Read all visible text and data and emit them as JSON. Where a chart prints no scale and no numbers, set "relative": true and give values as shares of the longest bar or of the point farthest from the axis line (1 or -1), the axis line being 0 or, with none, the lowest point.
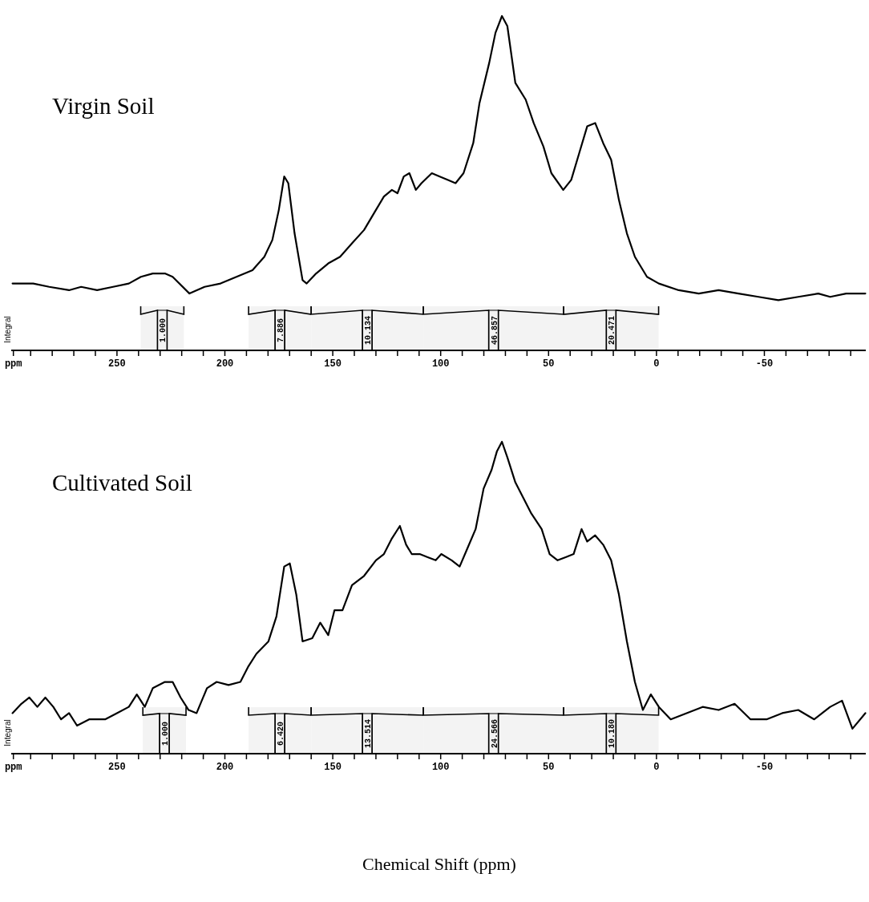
{
  "chart_data": [
    {
      "type": "line",
      "title": "Virgin Soil",
      "relative": true,
      "xlim": [
        299,
        -97
      ],
      "xticks": [
        {
          "value": 298,
          "label": "ppm"
        },
        {
          "value": 290,
          "label": null
        },
        {
          "value": 280,
          "label": null
        },
        {
          "value": 270,
          "label": null
        },
        {
          "value": 260,
          "label": null
        },
        250,
        {
          "value": 240,
          "label": null
        },
        {
          "value": 230,
          "label": null
        },
        {
          "value": 220,
          "label": null
        },
        {
          "value": 210,
          "label": null
        },
        200,
        {
          "value": 190,
          "label": null
        },
        {
          "value": 180,
          "label": null
        },
        {
          "value": 170,
          "label": null
        },
        {
          "value": 160,
          "label": null
        },
        150,
        {
          "value": 140,
          "label": null
        },
        {
          "value": 130,
          "label": null
        },
        {
          "value": 120,
          "label": null
        },
        {
          "value": 110,
          "label": null
        },
        100,
        {
          "value": 90,
          "label": null
        },
        {
          "value": 80,
          "label": null
        },
        {
          "value": 70,
          "label": null
        },
        {
          "value": 60,
          "label": null
        },
        50,
        {
          "value": 40,
          "label": null
        },
        {
          "value": 30,
          "label": null
        },
        {
          "value": 20,
          "label": null
        },
        {
          "value": 10,
          "label": null
        },
        0,
        {
          "value": -10,
          "label": null
        },
        {
          "value": -20,
          "label": null
        },
        {
          "value": -30,
          "label": null
        },
        {
          "value": -40,
          "label": null
        },
        -50,
        {
          "value": -60,
          "label": null
        },
        {
          "value": -70,
          "label": null
        },
        {
          "value": -80,
          "label": null
        },
        {
          "value": -90,
          "label": null
        }
      ],
      "series": [
        {
          "color": "#000000",
          "x": [
            298.4,
            288.8,
            281.4,
            272.2,
            266.6,
            259.2,
            251.8,
            244.5,
            238.9,
            233.4,
            227.8,
            224.2,
            216.4,
            209.4,
            202,
            194.6,
            187.2,
            181.7,
            178,
            175,
            172.5,
            170.6,
            167.7,
            164,
            162.1,
            157.7,
            152.1,
            146.6,
            141.1,
            135.5,
            130,
            126.3,
            122.6,
            120,
            117.1,
            114.5,
            111.5,
            108.9,
            104.1,
            100.4,
            96.8,
            93.1,
            89.4,
            84.9,
            82,
            77.5,
            74.6,
            71.6,
            69.1,
            65.4,
            60.6,
            56.9,
            52.4,
            48.7,
            43.2,
            39.5,
            35.8,
            32.1,
            28.4,
            24.7,
            21,
            17.4,
            13.7,
            10,
            4.4,
            -1.1,
            -10.3,
            -19.6,
            -28.8,
            -38,
            -47.3,
            -56.5,
            -65.7,
            -75,
            -80.5,
            -87.9,
            -96.8
          ],
          "values": [
            0.2,
            0.2,
            0.19,
            0.18,
            0.19,
            0.18,
            0.19,
            0.2,
            0.22,
            0.23,
            0.23,
            0.22,
            0.17,
            0.19,
            0.2,
            0.22,
            0.24,
            0.28,
            0.33,
            0.42,
            0.52,
            0.5,
            0.35,
            0.21,
            0.2,
            0.23,
            0.26,
            0.28,
            0.32,
            0.36,
            0.42,
            0.46,
            0.48,
            0.47,
            0.52,
            0.53,
            0.48,
            0.5,
            0.53,
            0.52,
            0.51,
            0.5,
            0.53,
            0.62,
            0.74,
            0.86,
            0.95,
            1,
            0.97,
            0.8,
            0.75,
            0.68,
            0.61,
            0.53,
            0.48,
            0.51,
            0.59,
            0.67,
            0.68,
            0.62,
            0.57,
            0.45,
            0.35,
            0.28,
            0.22,
            0.2,
            0.18,
            0.17,
            0.18,
            0.17,
            0.16,
            0.15,
            0.16,
            0.17,
            0.16,
            0.17,
            0.17
          ]
        }
      ],
      "bands": [
        {
          "axis": "x",
          "from": 239,
          "to": 219,
          "label": "1.000"
        },
        {
          "axis": "x",
          "from": 189,
          "to": 160,
          "label": "7.886"
        },
        {
          "axis": "x",
          "from": 160,
          "to": 108,
          "label": "10.134"
        },
        {
          "axis": "x",
          "from": 108,
          "to": 43,
          "label": "46.857"
        },
        {
          "axis": "x",
          "from": 43,
          "to": -1,
          "label": "20.471"
        }
      ],
      "annotations": [
        "Integral"
      ]
    },
    {
      "type": "line",
      "title": "Cultivated Soil",
      "xlabel": "Chemical Shift (ppm)",
      "relative": true,
      "xlim": [
        299,
        -97
      ],
      "xticks": [
        {
          "value": 298,
          "label": "ppm"
        },
        {
          "value": 290,
          "label": null
        },
        {
          "value": 280,
          "label": null
        },
        {
          "value": 270,
          "label": null
        },
        {
          "value": 260,
          "label": null
        },
        250,
        {
          "value": 240,
          "label": null
        },
        {
          "value": 230,
          "label": null
        },
        {
          "value": 220,
          "label": null
        },
        {
          "value": 210,
          "label": null
        },
        200,
        {
          "value": 190,
          "label": null
        },
        {
          "value": 180,
          "label": null
        },
        {
          "value": 170,
          "label": null
        },
        {
          "value": 160,
          "label": null
        },
        150,
        {
          "value": 140,
          "label": null
        },
        {
          "value": 130,
          "label": null
        },
        {
          "value": 120,
          "label": null
        },
        {
          "value": 110,
          "label": null
        },
        100,
        {
          "value": 90,
          "label": null
        },
        {
          "value": 80,
          "label": null
        },
        {
          "value": 70,
          "label": null
        },
        {
          "value": 60,
          "label": null
        },
        50,
        {
          "value": 40,
          "label": null
        },
        {
          "value": 30,
          "label": null
        },
        {
          "value": 20,
          "label": null
        },
        {
          "value": 10,
          "label": null
        },
        0,
        {
          "value": -10,
          "label": null
        },
        {
          "value": -20,
          "label": null
        },
        {
          "value": -30,
          "label": null
        },
        {
          "value": -40,
          "label": null
        },
        -50,
        {
          "value": -60,
          "label": null
        },
        {
          "value": -70,
          "label": null
        },
        {
          "value": -80,
          "label": null
        },
        {
          "value": -90,
          "label": null
        }
      ],
      "series": [
        {
          "color": "#000000",
          "x": [
            298.4,
            294.3,
            290.6,
            286.9,
            283.2,
            279.5,
            275.9,
            272.2,
            268.5,
            262.9,
            255.5,
            250,
            244.5,
            240.8,
            237.1,
            233.4,
            227.8,
            224.2,
            220.5,
            216.8,
            213.1,
            208.3,
            203.8,
            198.3,
            192.8,
            189.1,
            185.4,
            179.8,
            176.1,
            172.5,
            169.9,
            166.9,
            164,
            159.5,
            155.8,
            152.1,
            149.2,
            145.5,
            141.1,
            135.5,
            130,
            126.3,
            122.6,
            118.9,
            116,
            113.4,
            109.7,
            106,
            102.3,
            99.7,
            94.9,
            91.2,
            87.5,
            83.8,
            80.1,
            76.4,
            73.9,
            71.6,
            69.1,
            65.4,
            61.7,
            58,
            53.2,
            49.5,
            45.8,
            42.1,
            38.4,
            34.7,
            32.1,
            28.4,
            24.7,
            21,
            17.4,
            13.7,
            10,
            6.3,
            2.6,
            -1.1,
            -6.6,
            -14,
            -21.4,
            -28.8,
            -36.2,
            -43.6,
            -51,
            -58.3,
            -65.7,
            -73.1,
            -80.5,
            -86,
            -90.8,
            -96.8
          ],
          "values": [
            0.13,
            0.16,
            0.18,
            0.15,
            0.18,
            0.15,
            0.11,
            0.13,
            0.09,
            0.11,
            0.11,
            0.13,
            0.15,
            0.19,
            0.15,
            0.21,
            0.23,
            0.23,
            0.18,
            0.14,
            0.13,
            0.21,
            0.23,
            0.22,
            0.23,
            0.28,
            0.32,
            0.36,
            0.44,
            0.6,
            0.61,
            0.51,
            0.36,
            0.37,
            0.42,
            0.38,
            0.46,
            0.46,
            0.54,
            0.57,
            0.62,
            0.64,
            0.69,
            0.73,
            0.67,
            0.64,
            0.64,
            0.63,
            0.62,
            0.64,
            0.62,
            0.6,
            0.66,
            0.72,
            0.85,
            0.91,
            0.97,
            1,
            0.95,
            0.87,
            0.82,
            0.77,
            0.72,
            0.64,
            0.62,
            0.63,
            0.64,
            0.72,
            0.68,
            0.7,
            0.67,
            0.62,
            0.51,
            0.36,
            0.23,
            0.14,
            0.19,
            0.15,
            0.11,
            0.13,
            0.15,
            0.14,
            0.16,
            0.11,
            0.11,
            0.13,
            0.14,
            0.11,
            0.15,
            0.17,
            0.08,
            0.13
          ]
        }
      ],
      "bands": [
        {
          "axis": "x",
          "from": 238,
          "to": 218,
          "label": "1.000"
        },
        {
          "axis": "x",
          "from": 189,
          "to": 160,
          "label": "6.420"
        },
        {
          "axis": "x",
          "from": 160,
          "to": 108,
          "label": "13.514"
        },
        {
          "axis": "x",
          "from": 108,
          "to": 43,
          "label": "24.566"
        },
        {
          "axis": "x",
          "from": 43,
          "to": -1,
          "label": "10.180"
        }
      ],
      "annotations": [
        "Integral"
      ]
    }
  ]
}
